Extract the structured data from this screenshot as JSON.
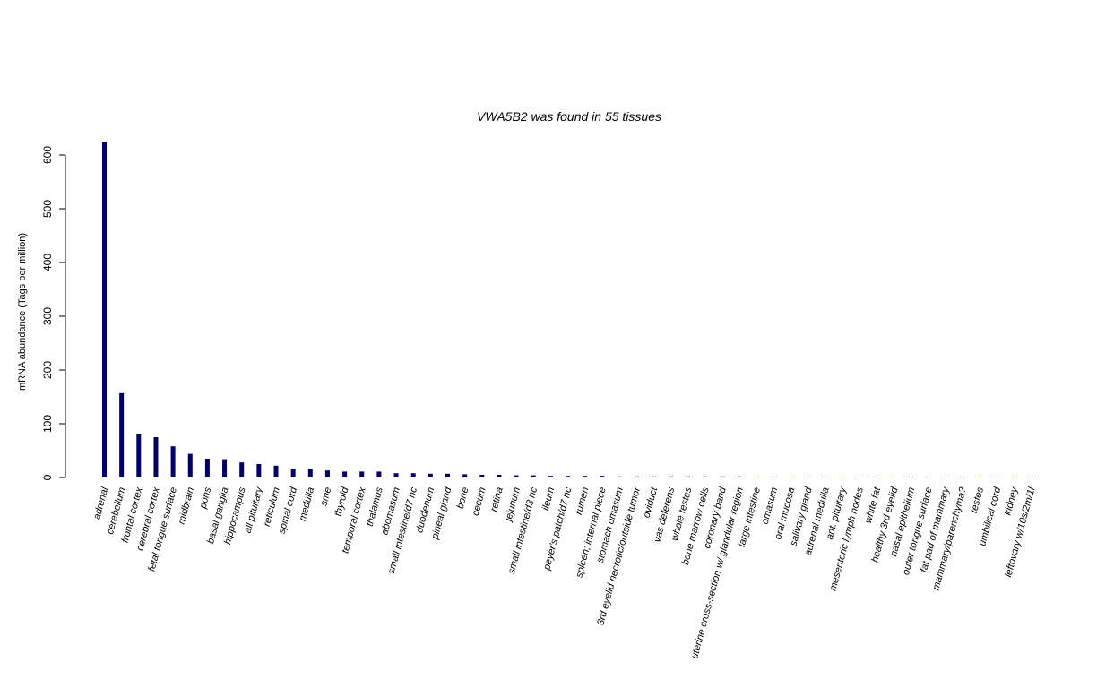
{
  "chart_data": {
    "type": "bar",
    "title": "VWA5B2  was found in  55  tissues",
    "ylabel": "mRNA abundance (Tags per million)",
    "ylim": [
      0,
      625
    ],
    "yticks": [
      0,
      100,
      200,
      300,
      400,
      500,
      600
    ],
    "bar_color": "#000066",
    "grid": false,
    "categories": [
      "adrenal",
      "cerebellum",
      "frontal cortex",
      "cerebral cortex",
      "fetal tongue surface",
      "midbrain",
      "pons",
      "basal ganglia",
      "hippocampus",
      "all pituitary",
      "reticulum",
      "spinal cord",
      "medulla",
      "sme",
      "thyroid",
      "temporal cortex",
      "thalamus",
      "abomasum",
      "small intestine/d7 hc",
      "duodenum",
      "pineal gland",
      "bone",
      "cecum",
      "retina",
      "jejunum",
      "small intestine/d3 hc",
      "ileum",
      "peyer's patch/d7 hc",
      "rumen",
      "spleen; internal piece",
      "stomach omasum",
      "3rd eyelid necrotic/outside tumor",
      "oviduct",
      "vas deferens",
      "whole testes",
      "bone marrow cells",
      "coronary band",
      "uterine cross-section w/ glandular region",
      "large intestine",
      "omasum",
      "oral mucosa",
      "salivary gland",
      "adrenal medulla",
      "ant. pituitary",
      "mesenteric lymph nodes",
      "white fat",
      "healthy 3rd eyelid",
      "nasal epithelium",
      "outer tongue surface",
      "fat pad of mammary",
      "mammary/parenchyma?",
      "testes",
      "umbilical cord",
      "kidney",
      "leftovary w/10s/2m/1l"
    ],
    "values": [
      625,
      157,
      80,
      75,
      58,
      44,
      35,
      34,
      28,
      25,
      22,
      16,
      15,
      13,
      11,
      11,
      11,
      8,
      8,
      7,
      7,
      6,
      5,
      5,
      4,
      4,
      3,
      3,
      3,
      3,
      2,
      2,
      2,
      2,
      2,
      2,
      2,
      2,
      1,
      1,
      1,
      1,
      1,
      1,
      1,
      1,
      1,
      1,
      1,
      1,
      1,
      1,
      1,
      1,
      1
    ]
  }
}
